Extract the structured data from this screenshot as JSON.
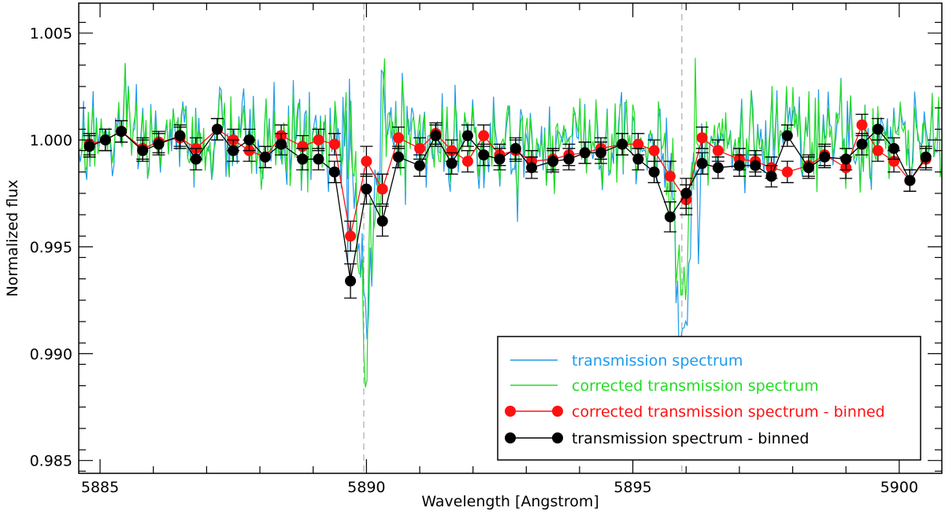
{
  "chart_data": {
    "type": "line",
    "title": "",
    "xlabel": "Wavelength [Angstrom]",
    "ylabel": "Normalized flux",
    "xlim": [
      5884.6,
      5900.8
    ],
    "ylim": [
      0.9844,
      1.0064
    ],
    "xticks": [
      5885,
      5890,
      5895,
      5900
    ],
    "xtick_labels": [
      "5885",
      "5890",
      "5895",
      "5900"
    ],
    "yticks": [
      0.985,
      0.99,
      0.995,
      1.0,
      1.005
    ],
    "ytick_labels": [
      "0.985",
      "0.990",
      "0.995",
      "1.000",
      "1.005"
    ],
    "reference_lines": [
      5889.95,
      5895.92
    ],
    "legend_position": "lower-right",
    "series": [
      {
        "name": "transmission spectrum",
        "color": "#1e9bea",
        "style": "line",
        "x_start": 5884.6,
        "x_end": 5900.8,
        "points": 540,
        "noise_sigma": 0.0012,
        "absorption_lines": [
          {
            "center": 5889.95,
            "depth": 0.0095,
            "width": 0.12
          },
          {
            "center": 5895.92,
            "depth": 0.0075,
            "width": 0.12
          }
        ]
      },
      {
        "name": "corrected transmission spectrum",
        "color": "#22dd22",
        "style": "line",
        "x_start": 5884.6,
        "x_end": 5900.8,
        "points": 540,
        "noise_sigma": 0.0012,
        "absorption_lines": [
          {
            "center": 5889.95,
            "depth": 0.0085,
            "width": 0.12
          },
          {
            "center": 5895.92,
            "depth": 0.0065,
            "width": 0.12
          }
        ]
      },
      {
        "name": "corrected transmission spectrum - binned",
        "color": "#ff1010",
        "style": "line-marker",
        "x": [
          5884.8,
          5885.1,
          5885.4,
          5885.8,
          5886.1,
          5886.5,
          5886.8,
          5887.2,
          5887.5,
          5887.8,
          5888.1,
          5888.4,
          5888.8,
          5889.1,
          5889.4,
          5889.7,
          5890.0,
          5890.3,
          5890.6,
          5891.0,
          5891.3,
          5891.6,
          5891.9,
          5892.2,
          5892.5,
          5892.8,
          5893.1,
          5893.5,
          5893.8,
          5894.1,
          5894.4,
          5894.8,
          5895.1,
          5895.4,
          5895.7,
          5896.0,
          5896.3,
          5896.6,
          5897.0,
          5897.3,
          5897.6,
          5897.9,
          5898.3,
          5898.6,
          5899.0,
          5899.3,
          5899.6,
          5899.9,
          5900.2,
          5900.5
        ],
        "values": [
          0.9998,
          1.0,
          1.0004,
          0.9996,
          0.9999,
          1.0001,
          0.9996,
          1.0005,
          1.0,
          0.9995,
          0.9992,
          1.0002,
          0.9997,
          1.0,
          0.9998,
          0.9955,
          0.999,
          0.9977,
          1.0001,
          0.9996,
          1.0003,
          0.9995,
          0.999,
          1.0002,
          0.9993,
          0.9995,
          0.999,
          0.9991,
          0.9993,
          0.9994,
          0.9996,
          0.9998,
          0.9998,
          0.9995,
          0.9983,
          0.9972,
          1.0001,
          0.9995,
          0.9991,
          0.999,
          0.9987,
          0.9985,
          0.9988,
          0.9993,
          0.9987,
          1.0007,
          0.9995,
          0.999,
          0.9981,
          0.9991
        ],
        "errors": [
          0.0005,
          0.0005,
          0.0005,
          0.0005,
          0.0005,
          0.0005,
          0.0005,
          0.0005,
          0.0005,
          0.0005,
          0.0005,
          0.0005,
          0.0005,
          0.0005,
          0.0005,
          0.0007,
          0.0007,
          0.0007,
          0.0005,
          0.0005,
          0.0005,
          0.0005,
          0.0005,
          0.0005,
          0.0005,
          0.0005,
          0.0005,
          0.0005,
          0.0005,
          0.0005,
          0.0005,
          0.0005,
          0.0005,
          0.0005,
          0.0007,
          0.0007,
          0.0005,
          0.0005,
          0.0005,
          0.0005,
          0.0005,
          0.0005,
          0.0005,
          0.0005,
          0.0005,
          0.0005,
          0.0005,
          0.0005,
          0.0005,
          0.0005
        ]
      },
      {
        "name": "transmission spectrum - binned",
        "color": "#000000",
        "style": "line-marker",
        "x": [
          5884.8,
          5885.1,
          5885.4,
          5885.8,
          5886.1,
          5886.5,
          5886.8,
          5887.2,
          5887.5,
          5887.8,
          5888.1,
          5888.4,
          5888.8,
          5889.1,
          5889.4,
          5889.7,
          5890.0,
          5890.3,
          5890.6,
          5891.0,
          5891.3,
          5891.6,
          5891.9,
          5892.2,
          5892.5,
          5892.8,
          5893.1,
          5893.5,
          5893.8,
          5894.1,
          5894.4,
          5894.8,
          5895.1,
          5895.4,
          5895.7,
          5896.0,
          5896.3,
          5896.6,
          5897.0,
          5897.3,
          5897.6,
          5897.9,
          5898.3,
          5898.6,
          5899.0,
          5899.3,
          5899.6,
          5899.9,
          5900.2,
          5900.5
        ],
        "values": [
          0.9997,
          1.0,
          1.0004,
          0.9995,
          0.9998,
          1.0002,
          0.9991,
          1.0005,
          0.9995,
          1.0,
          0.9992,
          0.9998,
          0.9991,
          0.9991,
          0.9985,
          0.9934,
          0.9977,
          0.9962,
          0.9992,
          0.9988,
          1.0002,
          0.9989,
          1.0002,
          0.9993,
          0.9991,
          0.9996,
          0.9987,
          0.999,
          0.9991,
          0.9994,
          0.9994,
          0.9998,
          0.9991,
          0.9985,
          0.9964,
          0.9975,
          0.9989,
          0.9987,
          0.9988,
          0.9988,
          0.9983,
          1.0002,
          0.9987,
          0.9992,
          0.9991,
          0.9998,
          1.0005,
          0.9996,
          0.9981,
          0.9992
        ],
        "errors": [
          0.0005,
          0.0005,
          0.0005,
          0.0005,
          0.0005,
          0.0005,
          0.0005,
          0.0005,
          0.0005,
          0.0005,
          0.0005,
          0.0005,
          0.0005,
          0.0005,
          0.0005,
          0.0008,
          0.0007,
          0.0007,
          0.0005,
          0.0005,
          0.0005,
          0.0005,
          0.0005,
          0.0005,
          0.0005,
          0.0005,
          0.0005,
          0.0005,
          0.0005,
          0.0005,
          0.0005,
          0.0005,
          0.0005,
          0.0005,
          0.0007,
          0.0007,
          0.0005,
          0.0005,
          0.0005,
          0.0005,
          0.0005,
          0.0005,
          0.0005,
          0.0005,
          0.0005,
          0.0005,
          0.0005,
          0.0005,
          0.0005,
          0.0005
        ]
      }
    ]
  }
}
